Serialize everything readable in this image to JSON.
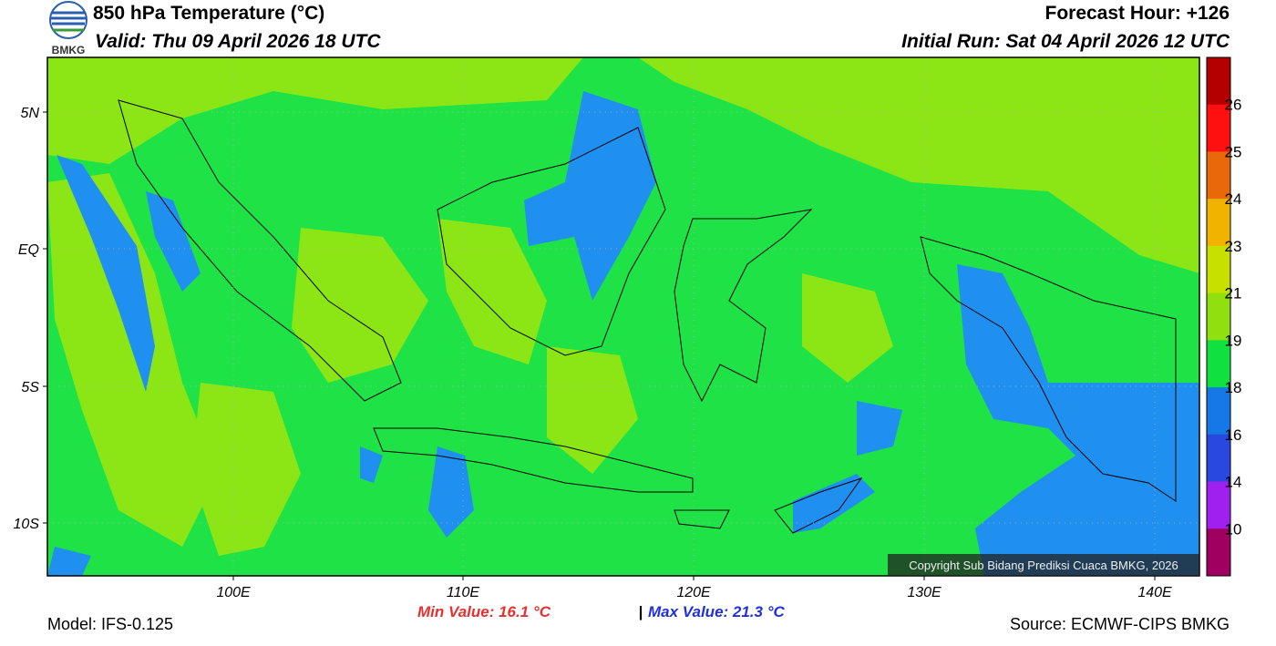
{
  "header": {
    "title": "850 hPa Temperature (°C)",
    "valid": "Valid: Thu 09 April 2026 18 UTC",
    "forecast_hour": "Forecast Hour: +126",
    "initial_run": "Initial Run: Sat 04 April 2026 12 UTC",
    "logo": "BMKG"
  },
  "map": {
    "lat_labels": [
      "5N",
      "EQ",
      "5S",
      "10S"
    ],
    "lon_labels": [
      "100E",
      "110E",
      "120E",
      "130E",
      "140E"
    ],
    "copyright": "Copyright Sub Bidang Prediksi Cuaca BMKG, 2026"
  },
  "colorbar": {
    "labels": [
      "26",
      "25",
      "24",
      "23",
      "21",
      "19",
      "18",
      "16",
      "14",
      "10"
    ],
    "colors": [
      "#b40000",
      "#ff1010",
      "#e8680a",
      "#f0b400",
      "#c8e000",
      "#90e010",
      "#10e040",
      "#1478e6",
      "#2848e0",
      "#a020f0",
      "#a00060"
    ]
  },
  "footer": {
    "model": "Model: IFS-0.125",
    "min": "Min Value: 16.1 °C",
    "separator": "|",
    "max": "Max Value: 21.3 °C",
    "source": "Source: ECMWF-CIPS BMKG"
  }
}
